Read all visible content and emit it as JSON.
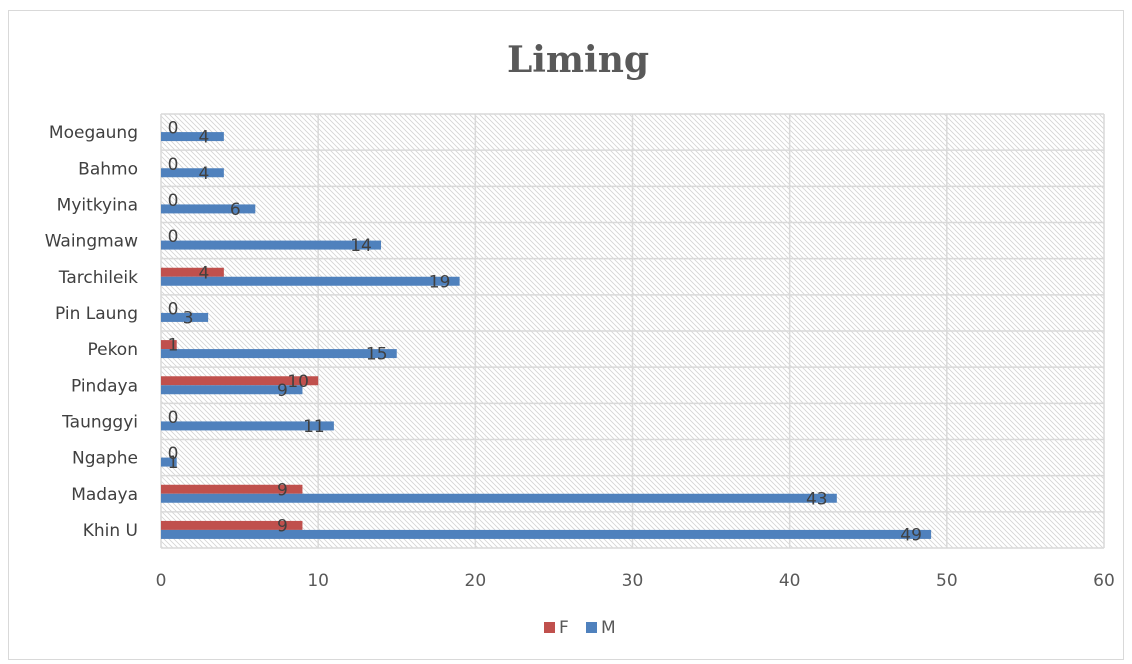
{
  "chart_data": {
    "type": "bar",
    "orientation": "horizontal",
    "title": "Liming",
    "xlabel": "",
    "ylabel": "",
    "categories": [
      "Khin U",
      "Madaya",
      "Ngaphe",
      "Taunggyi",
      "Pindaya",
      "Pekon",
      "Pin Laung",
      "Tarchileik",
      "Waingmaw",
      "Myitkyina",
      "Bahmo",
      "Moegaung"
    ],
    "series": [
      {
        "name": "F",
        "color": "#c0504d",
        "values": [
          9,
          9,
          0,
          0,
          10,
          1,
          0,
          4,
          0,
          0,
          0,
          0
        ]
      },
      {
        "name": "M",
        "color": "#4f81bd",
        "values": [
          49,
          43,
          1,
          11,
          9,
          15,
          3,
          19,
          14,
          6,
          4,
          4
        ]
      }
    ],
    "xlim": [
      0,
      60
    ],
    "x_ticks": [
      0,
      10,
      20,
      30,
      40,
      50,
      60
    ],
    "grid": true,
    "legend_position": "bottom",
    "data_labels": true
  }
}
